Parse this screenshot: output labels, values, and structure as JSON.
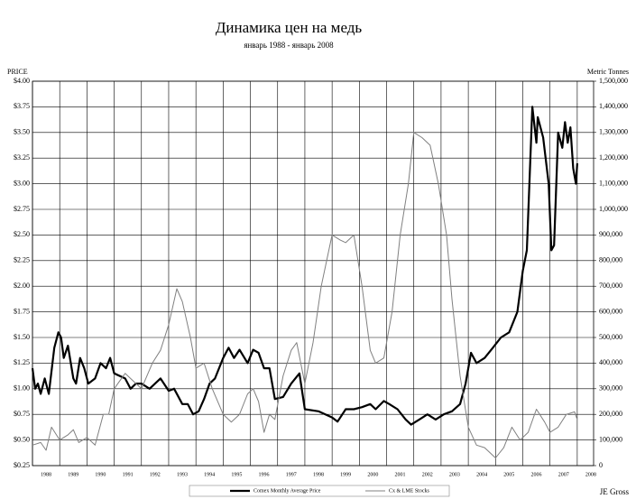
{
  "chart_data": {
    "type": "line",
    "title": "Динамика цен на медь",
    "subtitle": "январь 1988 - январь 2008",
    "ylabel": "PRICE",
    "y2label": "Metric Tonnes",
    "annotation": "JE Gross",
    "grid": true,
    "xlim": [
      1988,
      2008.6
    ],
    "xticks": [
      1988,
      1989,
      1990,
      1991,
      1992,
      1993,
      1994,
      1995,
      1996,
      1997,
      1998,
      1999,
      2000,
      2001,
      2002,
      2003,
      2004,
      2005,
      2006,
      2007,
      2008
    ],
    "ylim": [
      0.25,
      4.0
    ],
    "yticks": [
      {
        "value": 0.25,
        "label": "$0.25"
      },
      {
        "value": 0.5,
        "label": "$0.50"
      },
      {
        "value": 0.75,
        "label": "$0.75"
      },
      {
        "value": 1.0,
        "label": "$1.00"
      },
      {
        "value": 1.25,
        "label": "$1.25"
      },
      {
        "value": 1.5,
        "label": "$1.50"
      },
      {
        "value": 1.75,
        "label": "$1.75"
      },
      {
        "value": 2.0,
        "label": "$2.00"
      },
      {
        "value": 2.25,
        "label": "$2.25"
      },
      {
        "value": 2.5,
        "label": "$2.50"
      },
      {
        "value": 2.75,
        "label": "$2.75"
      },
      {
        "value": 3.0,
        "label": "$3.00"
      },
      {
        "value": 3.25,
        "label": "$3.25"
      },
      {
        "value": 3.5,
        "label": "$3.50"
      },
      {
        "value": 3.75,
        "label": "$3.75"
      },
      {
        "value": 4.0,
        "label": "$4.00"
      }
    ],
    "y2lim": [
      0,
      1500000
    ],
    "y2ticks": [
      0,
      {
        "value": 100000,
        "label": "100,000"
      },
      {
        "value": 200000,
        "label": "200,000"
      },
      {
        "value": 300000,
        "label": "300,000"
      },
      {
        "value": 400000,
        "label": "400,000"
      },
      {
        "value": 500000,
        "label": "500,000"
      },
      {
        "value": 600000,
        "label": "600,000"
      },
      {
        "value": 700000,
        "label": "700,000"
      },
      {
        "value": 800000,
        "label": "800,000"
      },
      {
        "value": 900000,
        "label": "900,000"
      },
      {
        "value": 1000000,
        "label": "1,000,000"
      },
      {
        "value": 1100000,
        "label": "1,100,000"
      },
      {
        "value": 1200000,
        "label": "1,200,000"
      },
      {
        "value": 1300000,
        "label": "1,300,000"
      },
      {
        "value": 1400000,
        "label": "1,400,000"
      },
      {
        "value": 1500000,
        "label": "1,500,000"
      }
    ],
    "series": [
      {
        "name": "Comex Monthly Average Price",
        "color": "#000000",
        "width": 2.2,
        "x": [
          1988.0,
          1988.1,
          1988.2,
          1988.3,
          1988.45,
          1988.6,
          1988.8,
          1988.95,
          1989.05,
          1989.15,
          1989.3,
          1989.5,
          1989.6,
          1989.75,
          1989.9,
          1990.05,
          1990.3,
          1990.5,
          1990.7,
          1990.85,
          1991.0,
          1991.4,
          1991.6,
          1991.8,
          1992.0,
          1992.3,
          1992.5,
          1992.7,
          1993.0,
          1993.2,
          1993.5,
          1993.7,
          1993.9,
          1994.1,
          1994.3,
          1994.5,
          1994.7,
          1995.0,
          1995.2,
          1995.4,
          1995.6,
          1995.9,
          1996.1,
          1996.3,
          1996.5,
          1996.7,
          1996.9,
          1997.2,
          1997.5,
          1997.8,
          1998.0,
          1998.5,
          1999.0,
          1999.2,
          1999.5,
          1999.8,
          2000.1,
          2000.4,
          2000.6,
          2000.9,
          2001.1,
          2001.4,
          2001.7,
          2001.9,
          2002.2,
          2002.5,
          2002.8,
          2003.1,
          2003.4,
          2003.7,
          2003.9,
          2004.1,
          2004.3,
          2004.6,
          2004.9,
          2005.2,
          2005.5,
          2005.8,
          2006.0,
          2006.15,
          2006.35,
          2006.5,
          2006.55,
          2006.75,
          2006.95,
          2007.05,
          2007.15,
          2007.3,
          2007.45,
          2007.55,
          2007.65,
          2007.75,
          2007.85,
          2007.95,
          2008.0
        ],
        "values": [
          1.2,
          1.0,
          1.05,
          0.95,
          1.1,
          0.95,
          1.4,
          1.55,
          1.5,
          1.3,
          1.42,
          1.1,
          1.05,
          1.3,
          1.2,
          1.05,
          1.1,
          1.25,
          1.2,
          1.3,
          1.15,
          1.1,
          1.0,
          1.05,
          1.05,
          1.0,
          1.05,
          1.1,
          0.98,
          1.0,
          0.85,
          0.85,
          0.75,
          0.78,
          0.9,
          1.05,
          1.1,
          1.3,
          1.4,
          1.3,
          1.38,
          1.25,
          1.38,
          1.35,
          1.2,
          1.2,
          0.9,
          0.92,
          1.05,
          1.15,
          0.8,
          0.78,
          0.72,
          0.68,
          0.8,
          0.8,
          0.82,
          0.85,
          0.8,
          0.88,
          0.85,
          0.8,
          0.7,
          0.65,
          0.7,
          0.75,
          0.7,
          0.75,
          0.78,
          0.85,
          1.05,
          1.35,
          1.25,
          1.3,
          1.4,
          1.5,
          1.55,
          1.75,
          2.15,
          2.35,
          3.75,
          3.4,
          3.65,
          3.45,
          3.0,
          2.35,
          2.4,
          3.5,
          3.35,
          3.6,
          3.4,
          3.55,
          3.15,
          3.0,
          3.2
        ]
      },
      {
        "name": "Cx & LME Stocks",
        "color": "#808080",
        "width": 1,
        "axis": "y2",
        "x": [
          1988.0,
          1988.3,
          1988.5,
          1988.7,
          1989.0,
          1989.3,
          1989.5,
          1989.7,
          1990.0,
          1990.3,
          1990.6,
          1990.8,
          1991.0,
          1991.2,
          1991.4,
          1991.7,
          1992.0,
          1992.4,
          1992.7,
          1993.0,
          1993.3,
          1993.5,
          1993.8,
          1994.0,
          1994.3,
          1994.6,
          1995.0,
          1995.3,
          1995.6,
          1995.9,
          1996.1,
          1996.3,
          1996.5,
          1996.7,
          1996.9,
          1997.2,
          1997.5,
          1997.7,
          1998.0,
          1998.3,
          1998.6,
          1999.0,
          1999.3,
          1999.5,
          1999.8,
          2000.1,
          2000.4,
          2000.6,
          2000.9,
          2001.2,
          2001.5,
          2001.8,
          2002.0,
          2002.3,
          2002.6,
          2002.9,
          2003.2,
          2003.4,
          2003.7,
          2004.0,
          2004.3,
          2004.6,
          2005.0,
          2005.3,
          2005.6,
          2005.9,
          2006.2,
          2006.5,
          2006.8,
          2007.0,
          2007.3,
          2007.6,
          2007.9,
          2008.0
        ],
        "values": [
          80000,
          90000,
          60000,
          150000,
          100000,
          120000,
          140000,
          90000,
          110000,
          80000,
          200000,
          200000,
          300000,
          330000,
          360000,
          330000,
          300000,
          400000,
          450000,
          550000,
          690000,
          640000,
          500000,
          380000,
          400000,
          300000,
          200000,
          170000,
          200000,
          280000,
          300000,
          250000,
          130000,
          200000,
          180000,
          350000,
          450000,
          480000,
          320000,
          480000,
          700000,
          900000,
          880000,
          870000,
          900000,
          700000,
          450000,
          400000,
          420000,
          600000,
          900000,
          1100000,
          1300000,
          1280000,
          1250000,
          1100000,
          900000,
          650000,
          350000,
          150000,
          80000,
          70000,
          30000,
          70000,
          150000,
          100000,
          130000,
          220000,
          170000,
          130000,
          150000,
          200000,
          210000,
          180000
        ]
      }
    ]
  }
}
